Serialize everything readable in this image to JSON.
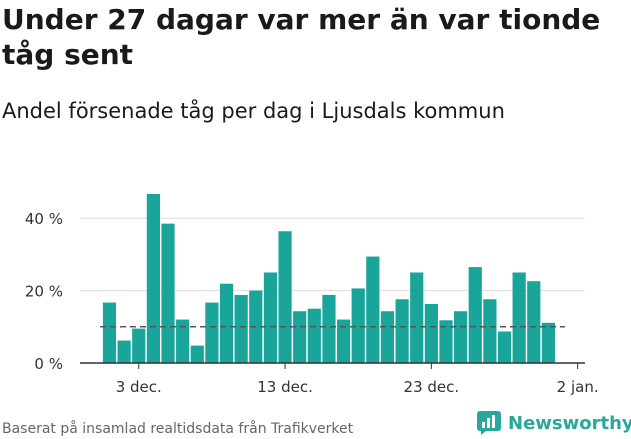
{
  "header": {
    "title": "Under 27 dagar var mer än var tionde tåg sent",
    "subtitle": "Andel försenade tåg per dag i Ljusdals kommun"
  },
  "footer": {
    "source": "Baserat på insamlad realtidsdata från Trafikverket",
    "brand": "Newsworthy"
  },
  "colors": {
    "bar": "#1aa59a",
    "axis": "#333333",
    "grid": "#dddddd",
    "reference_line": "#555555",
    "brand": "#2aa79b"
  },
  "chart_data": {
    "type": "bar",
    "title": "Under 27 dagar var mer än var tionde tåg sent",
    "subtitle": "Andel försenade tåg per dag i Ljusdals kommun",
    "categories": [
      "2023-12-01",
      "2023-12-02",
      "2023-12-03",
      "2023-12-04",
      "2023-12-05",
      "2023-12-06",
      "2023-12-07",
      "2023-12-08",
      "2023-12-09",
      "2023-12-10",
      "2023-12-11",
      "2023-12-12",
      "2023-12-13",
      "2023-12-14",
      "2023-12-15",
      "2023-12-16",
      "2023-12-17",
      "2023-12-18",
      "2023-12-19",
      "2023-12-20",
      "2023-12-21",
      "2023-12-22",
      "2023-12-23",
      "2023-12-24",
      "2023-12-25",
      "2023-12-26",
      "2023-12-27",
      "2023-12-28",
      "2023-12-29",
      "2023-12-30",
      "2023-12-31"
    ],
    "values": [
      16.7,
      6.2,
      9.5,
      46.7,
      38.5,
      12.0,
      4.8,
      16.7,
      21.9,
      18.8,
      20.0,
      25.0,
      36.4,
      14.3,
      15.0,
      18.8,
      12.0,
      20.6,
      29.4,
      14.3,
      17.6,
      25.0,
      16.3,
      11.8,
      14.3,
      26.5,
      17.6,
      8.7,
      25.0,
      22.6,
      11.1
    ],
    "reference_line": 10,
    "ylim": [
      0,
      50
    ],
    "yticks": [
      0,
      20,
      40
    ],
    "ytick_labels": [
      "0 %",
      "20 %",
      "40 %"
    ],
    "xticks": [
      "2023-12-03",
      "2023-12-13",
      "2023-12-23",
      "2024-01-02"
    ],
    "xtick_labels": [
      "3 dec.",
      "13 dec.",
      "23 dec.",
      "2 jan."
    ],
    "xlabel": "",
    "ylabel": "",
    "grid": true,
    "legend": "none"
  }
}
